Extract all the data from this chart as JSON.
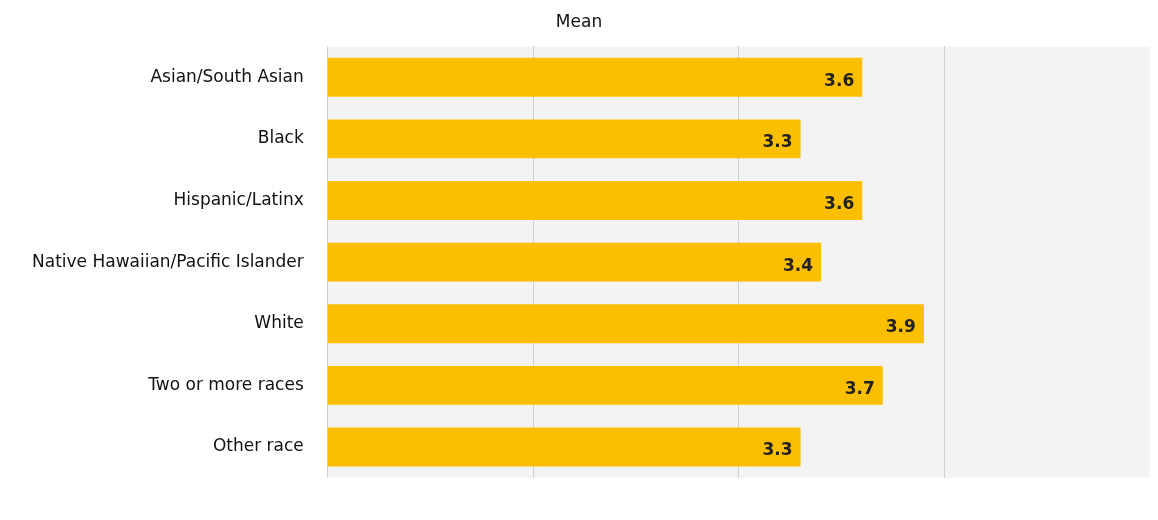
{
  "chart_data": {
    "type": "bar",
    "orientation": "horizontal",
    "title": "Mean",
    "categories": [
      "Asian/South Asian",
      "Black",
      "Hispanic/Latinx",
      "Native Hawaiian/Pacific Islander",
      "White",
      "Two or more races",
      "Other race"
    ],
    "values": [
      3.6,
      3.3,
      3.6,
      3.4,
      3.9,
      3.7,
      3.3
    ],
    "color": "#fbbf00",
    "xlim": [
      1,
      5
    ],
    "xticks": [
      {
        "value": 1,
        "label": null
      },
      {
        "value": 2,
        "label": null
      },
      {
        "value": 3,
        "label": null
      },
      {
        "value": 4,
        "label": null
      },
      {
        "value": 5,
        "label": null
      }
    ],
    "grid": "x",
    "tick_labels": "y",
    "data_labels": true,
    "legend": false
  }
}
